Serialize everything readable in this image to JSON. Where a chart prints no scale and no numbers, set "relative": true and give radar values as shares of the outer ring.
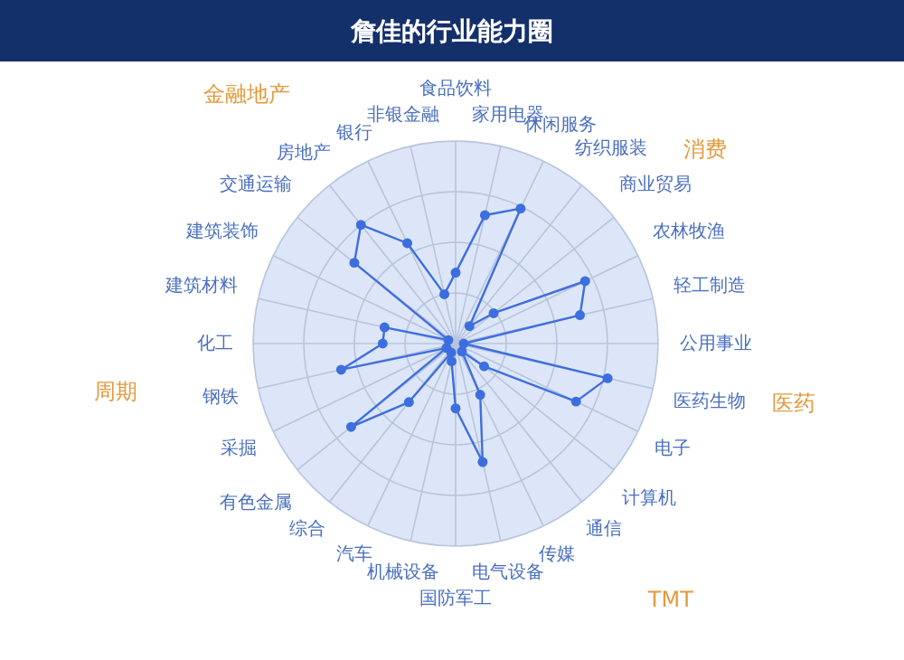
{
  "chart_data": {
    "type": "radar",
    "title": "詹佳的行业能力圈",
    "relative": true,
    "grid": true,
    "marker": "circle",
    "categories": [
      "食品饮料",
      "家用电器",
      "休闲服务",
      "纺织服装",
      "商业贸易",
      "农林牧渔",
      "轻工制造",
      "公用事业",
      "医药生物",
      "电子",
      "计算机",
      "通信",
      "传媒",
      "电气设备",
      "国防军工",
      "机械设备",
      "汽车",
      "综合",
      "有色金属",
      "采掘",
      "钢铁",
      "化工",
      "建筑材料",
      "建筑装饰",
      "交通运输",
      "房地产",
      "银行",
      "非银金融"
    ],
    "series": [
      {
        "color": "#3d6ee0",
        "values": [
          0.35,
          0.65,
          0.74,
          0.11,
          0.24,
          0.71,
          0.63,
          0.04,
          0.77,
          0.66,
          0.18,
          0.05,
          0.28,
          0.6,
          0.32,
          0.09,
          0.05,
          0.37,
          0.66,
          0.05,
          0.58,
          0.36,
          0.36,
          0.04,
          0.64,
          0.75,
          0.55,
          0.25
        ]
      }
    ],
    "annotations": [
      "金融地产",
      "消费",
      "医药",
      "TMT",
      "周期"
    ]
  }
}
